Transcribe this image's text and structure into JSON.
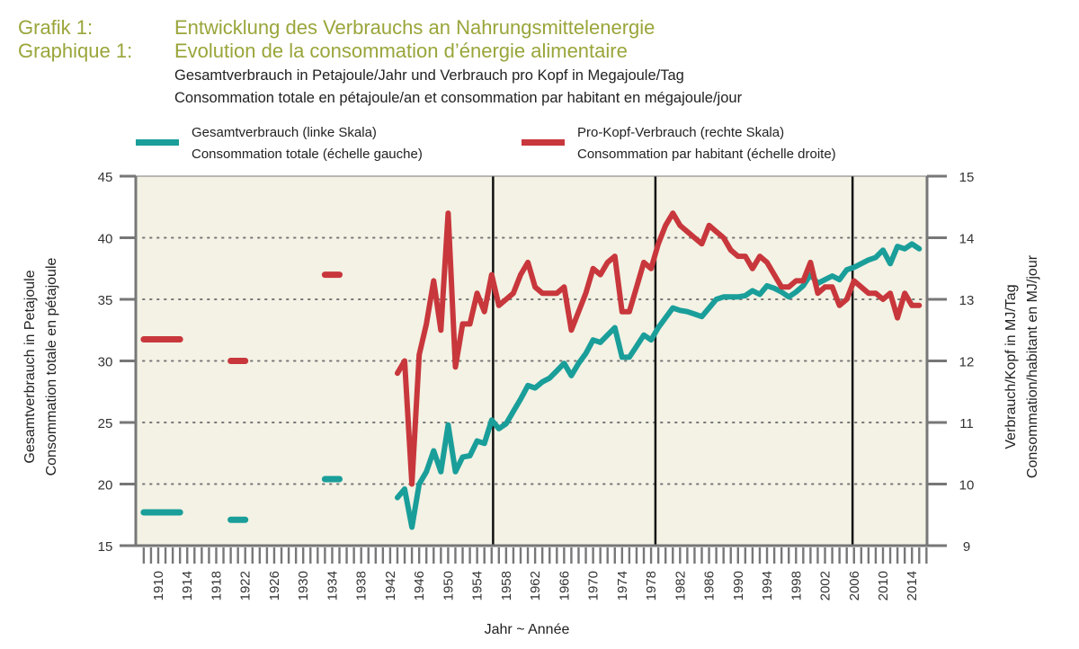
{
  "header": {
    "label_de": "Grafik 1:",
    "label_fr": "Graphique 1:",
    "title_de": "Entwicklung des Verbrauchs an Nahrungsmittelenergie",
    "title_fr": "Evolution de la consommation d’énergie alimentaire",
    "subtitle_de": "Gesamtverbrauch in Petajoule/Jahr und Verbrauch pro Kopf in Megajoule/Tag",
    "subtitle_fr": "Consommation totale en pétajoule/an et consommation par habitant en mégajoule/jour"
  },
  "legend": [
    {
      "line1": "Gesamtverbrauch (linke Skala)",
      "line2": "Consommation totale (échelle gauche)",
      "color": "#1a9e9a"
    },
    {
      "line1": "Pro-Kopf-Verbrauch (rechte Skala)",
      "line2": "Consommation par habitant (échelle droite)",
      "color": "#c8373c"
    }
  ],
  "colors": {
    "plot_bg": "#f3f2e4",
    "axis": "#777777",
    "grid": "#777777",
    "total": "#1a9e9a",
    "per_capita": "#c8373c",
    "header": "#9aa53a"
  },
  "chart_data": {
    "type": "line",
    "title": "Entwicklung des Verbrauchs an Nahrungsmittelenergie / Evolution de la consommation d’énergie alimentaire",
    "xlabel": "Jahr ~ Année",
    "ylabel_left": [
      "Gesamtverbrauch in Petajoule",
      "Consommation totale en pétajoule"
    ],
    "ylabel_right": [
      "Verbrauch/Kopf in MJ/Tag",
      "Consommation/habitant en MJ/jour"
    ],
    "xlim": [
      1908,
      2016
    ],
    "ylim_left": [
      15,
      45
    ],
    "ylim_right": [
      9,
      15
    ],
    "yticks_left": [
      "15",
      "20",
      "25",
      "30",
      "35",
      "40",
      "45"
    ],
    "yticks_right": [
      "9",
      "10",
      "11",
      "12",
      "13",
      "14",
      "15"
    ],
    "xtick_labels": [
      "1910",
      "1914",
      "1918",
      "1922",
      "1926",
      "1930",
      "1934",
      "1938",
      "1942",
      "1946",
      "1950",
      "1954",
      "1958",
      "1962",
      "1966",
      "1970",
      "1974",
      "1978",
      "1982",
      "1986",
      "1990",
      "1994",
      "1998",
      "2002",
      "2006",
      "2010",
      "2014"
    ],
    "grid": "horizontal dotted",
    "period_dividers": [
      1956.2,
      1978.6,
      2005.8
    ],
    "legend_position": "top",
    "series": [
      {
        "name": "Gesamtverbrauch (linke Skala) / Consommation totale (échelle gauche)",
        "axis": "left",
        "segments": [
          {
            "x": [
              1908,
              1913
            ],
            "values": [
              17.7,
              17.7
            ]
          },
          {
            "x": [
              1920,
              1922
            ],
            "values": [
              17.1,
              17.1
            ]
          },
          {
            "x": [
              1933,
              1935
            ],
            "values": [
              20.4,
              20.4
            ]
          }
        ],
        "x": [
          1943,
          1944,
          1945,
          1946,
          1947,
          1948,
          1949,
          1950,
          1951,
          1952,
          1953,
          1954,
          1955,
          1956,
          1957,
          1958,
          1959,
          1960,
          1961,
          1962,
          1963,
          1964,
          1965,
          1966,
          1967,
          1968,
          1969,
          1970,
          1971,
          1972,
          1973,
          1974,
          1975,
          1976,
          1977,
          1978,
          1979,
          1980,
          1981,
          1982,
          1983,
          1984,
          1985,
          1986,
          1987,
          1988,
          1989,
          1990,
          1991,
          1992,
          1993,
          1994,
          1995,
          1996,
          1997,
          1998,
          1999,
          2000,
          2001,
          2002,
          2003,
          2004,
          2005,
          2006,
          2007,
          2008,
          2009,
          2010,
          2011,
          2012,
          2013,
          2014,
          2015
        ],
        "values": [
          18.9,
          19.6,
          16.5,
          20.0,
          21.0,
          22.7,
          21.0,
          24.8,
          21.0,
          22.2,
          22.3,
          23.5,
          23.3,
          25.2,
          24.5,
          24.9,
          25.9,
          26.9,
          28.0,
          27.8,
          28.3,
          28.6,
          29.2,
          29.8,
          28.8,
          29.8,
          30.6,
          31.7,
          31.5,
          32.1,
          32.7,
          30.3,
          30.3,
          31.2,
          32.1,
          31.7,
          32.7,
          33.5,
          34.3,
          34.1,
          34.0,
          33.8,
          33.6,
          34.3,
          35.0,
          35.2,
          35.2,
          35.2,
          35.3,
          35.7,
          35.4,
          36.1,
          35.9,
          35.6,
          35.2,
          35.6,
          36.1,
          37.0,
          36.3,
          36.6,
          36.9,
          36.6,
          37.4,
          37.6,
          37.9,
          38.2,
          38.4,
          39.0,
          37.9,
          39.3,
          39.1,
          39.5,
          39.1
        ]
      },
      {
        "name": "Pro-Kopf-Verbrauch (rechte Skala) / Consommation par habitant (échelle droite)",
        "axis": "right",
        "segments": [
          {
            "x": [
              1908,
              1913
            ],
            "values": [
              12.35,
              12.35
            ]
          },
          {
            "x": [
              1920,
              1922
            ],
            "values": [
              12.0,
              12.0
            ]
          },
          {
            "x": [
              1933,
              1935
            ],
            "values": [
              13.4,
              13.4
            ]
          }
        ],
        "x": [
          1943,
          1944,
          1945,
          1946,
          1947,
          1948,
          1949,
          1950,
          1951,
          1952,
          1953,
          1954,
          1955,
          1956,
          1957,
          1958,
          1959,
          1960,
          1961,
          1962,
          1963,
          1964,
          1965,
          1966,
          1967,
          1968,
          1969,
          1970,
          1971,
          1972,
          1973,
          1974,
          1975,
          1976,
          1977,
          1978,
          1979,
          1980,
          1981,
          1982,
          1983,
          1984,
          1985,
          1986,
          1987,
          1988,
          1989,
          1990,
          1991,
          1992,
          1993,
          1994,
          1995,
          1996,
          1997,
          1998,
          1999,
          2000,
          2001,
          2002,
          2003,
          2004,
          2005,
          2006,
          2007,
          2008,
          2009,
          2010,
          2011,
          2012,
          2013,
          2014,
          2015
        ],
        "values": [
          11.8,
          12.0,
          10.0,
          12.1,
          12.6,
          13.3,
          12.5,
          14.4,
          11.9,
          12.6,
          12.6,
          13.1,
          12.8,
          13.4,
          12.9,
          13.0,
          13.1,
          13.4,
          13.6,
          13.2,
          13.1,
          13.1,
          13.1,
          13.2,
          12.5,
          12.8,
          13.1,
          13.5,
          13.4,
          13.6,
          13.7,
          12.8,
          12.8,
          13.2,
          13.6,
          13.5,
          13.9,
          14.2,
          14.4,
          14.2,
          14.1,
          14.0,
          13.9,
          14.2,
          14.1,
          14.0,
          13.8,
          13.7,
          13.7,
          13.5,
          13.7,
          13.6,
          13.4,
          13.2,
          13.2,
          13.3,
          13.3,
          13.6,
          13.1,
          13.2,
          13.2,
          12.9,
          13.0,
          13.3,
          13.2,
          13.1,
          13.1,
          13.0,
          13.1,
          12.7,
          13.1,
          12.9,
          12.9
        ]
      }
    ]
  }
}
